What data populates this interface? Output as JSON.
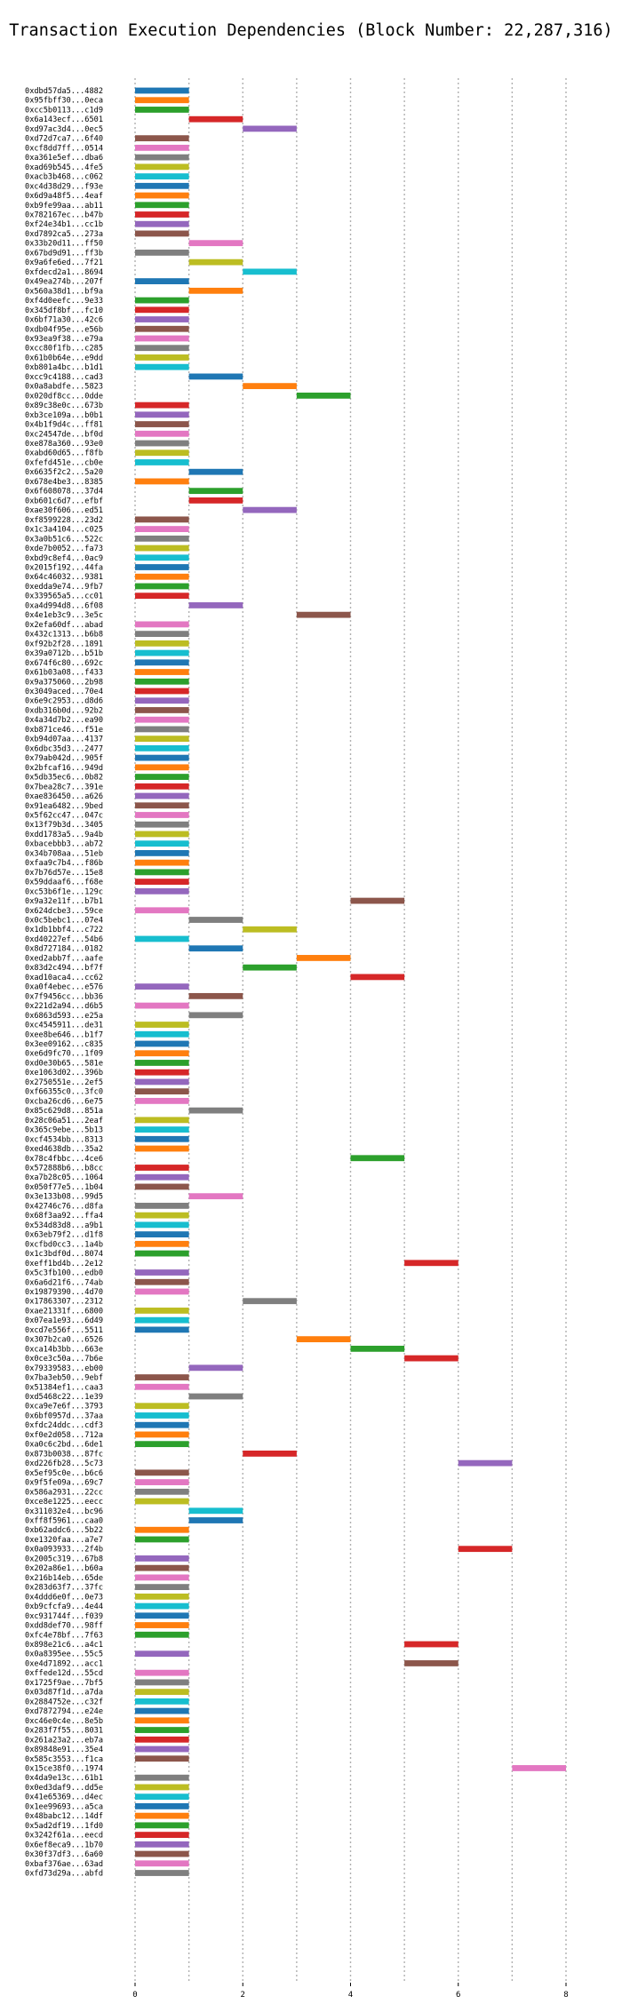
{
  "chart_data": {
    "type": "bar",
    "orientation": "horizontal",
    "title": "Transaction Execution Dependencies (Block Number: 22,287,316)",
    "xlabel": "",
    "ylabel": "",
    "xlim": [
      -0.5,
      8.5
    ],
    "xticks": [
      0,
      2,
      4,
      6,
      8
    ],
    "grid": "x-only dotted",
    "legend": "none",
    "bar_length": 1,
    "palette": [
      "#1f77b4",
      "#ff7f0e",
      "#2ca02c",
      "#d62728",
      "#9467bd",
      "#8c564b",
      "#e377c2",
      "#7f7f7f",
      "#bcbd22",
      "#17becf"
    ],
    "transactions": [
      {
        "label": "0xdbd57da5...4882",
        "start": 0
      },
      {
        "label": "0x95fbff30...0eca",
        "start": 0
      },
      {
        "label": "0xcc5b0113...c1d9",
        "start": 0
      },
      {
        "label": "0x6a143ecf...6501",
        "start": 1
      },
      {
        "label": "0xd97ac3d4...0ec5",
        "start": 2
      },
      {
        "label": "0xd72d7ca7...6f40",
        "start": 0
      },
      {
        "label": "0xcf8dd7ff...0514",
        "start": 0
      },
      {
        "label": "0xa361e5ef...dba6",
        "start": 0
      },
      {
        "label": "0xad69b545...4fe5",
        "start": 0
      },
      {
        "label": "0xacb3b468...c062",
        "start": 0
      },
      {
        "label": "0xc4d38d29...f93e",
        "start": 0
      },
      {
        "label": "0x6d9a48f5...4eaf",
        "start": 0
      },
      {
        "label": "0xb9fe99aa...ab11",
        "start": 0
      },
      {
        "label": "0x782167ec...b47b",
        "start": 0
      },
      {
        "label": "0xf24e34b1...cc1b",
        "start": 0
      },
      {
        "label": "0xd7892ca5...273a",
        "start": 0
      },
      {
        "label": "0x33b20d11...ff50",
        "start": 1
      },
      {
        "label": "0x67bd9d91...ff3b",
        "start": 0
      },
      {
        "label": "0x9a6fe6ed...7f21",
        "start": 1
      },
      {
        "label": "0xfdecd2a1...8694",
        "start": 2
      },
      {
        "label": "0x49ea274b...207f",
        "start": 0
      },
      {
        "label": "0x560a38d1...bf9a",
        "start": 1
      },
      {
        "label": "0xf4d0eefc...9e33",
        "start": 0
      },
      {
        "label": "0x345df8bf...fc10",
        "start": 0
      },
      {
        "label": "0x6bf71a30...42c6",
        "start": 0
      },
      {
        "label": "0xdb04f95e...e56b",
        "start": 0
      },
      {
        "label": "0x93ea9f38...e79a",
        "start": 0
      },
      {
        "label": "0xcc80f1fb...c285",
        "start": 0
      },
      {
        "label": "0x61b0b64e...e9dd",
        "start": 0
      },
      {
        "label": "0xb801a4bc...b1d1",
        "start": 0
      },
      {
        "label": "0xcc9c4188...cad3",
        "start": 1
      },
      {
        "label": "0x0a8abdfe...5823",
        "start": 2
      },
      {
        "label": "0x020df8cc...0dde",
        "start": 3
      },
      {
        "label": "0x89c38e0c...673b",
        "start": 0
      },
      {
        "label": "0xb3ce109a...b0b1",
        "start": 0
      },
      {
        "label": "0x4b1f9d4c...ff81",
        "start": 0
      },
      {
        "label": "0xc24547de...bf0d",
        "start": 0
      },
      {
        "label": "0xe878a360...93e0",
        "start": 0
      },
      {
        "label": "0xabd60d65...f8fb",
        "start": 0
      },
      {
        "label": "0xfefd451e...cb0e",
        "start": 0
      },
      {
        "label": "0x6635f2c2...5a20",
        "start": 1
      },
      {
        "label": "0x678e4be3...8385",
        "start": 0
      },
      {
        "label": "0x6f608078...37d4",
        "start": 1
      },
      {
        "label": "0xb601c6d7...efbf",
        "start": 1
      },
      {
        "label": "0xae30f606...ed51",
        "start": 2
      },
      {
        "label": "0xf8599228...23d2",
        "start": 0
      },
      {
        "label": "0x1c3a4104...c025",
        "start": 0
      },
      {
        "label": "0x3a0b51c6...522c",
        "start": 0
      },
      {
        "label": "0xde7b0052...fa73",
        "start": 0
      },
      {
        "label": "0xbd9c8ef4...0ac9",
        "start": 0
      },
      {
        "label": "0x2015f192...44fa",
        "start": 0
      },
      {
        "label": "0x64c46032...9381",
        "start": 0
      },
      {
        "label": "0xedda9e74...9fb7",
        "start": 0
      },
      {
        "label": "0x339565a5...cc01",
        "start": 0
      },
      {
        "label": "0xa4d994d8...6f08",
        "start": 1
      },
      {
        "label": "0x4e1eb3c9...3e5c",
        "start": 3
      },
      {
        "label": "0x2efa60df...abad",
        "start": 0
      },
      {
        "label": "0x432c1313...b6b8",
        "start": 0
      },
      {
        "label": "0xf92b2f28...1891",
        "start": 0
      },
      {
        "label": "0x39a0712b...b51b",
        "start": 0
      },
      {
        "label": "0x674f6c80...692c",
        "start": 0
      },
      {
        "label": "0x61b03a08...f433",
        "start": 0
      },
      {
        "label": "0x9a375060...2b98",
        "start": 0
      },
      {
        "label": "0x3049aced...70e4",
        "start": 0
      },
      {
        "label": "0x6e9c2953...d8d6",
        "start": 0
      },
      {
        "label": "0xdb316b0d...92b2",
        "start": 0
      },
      {
        "label": "0x4a34d7b2...ea90",
        "start": 0
      },
      {
        "label": "0xb871ce46...f51e",
        "start": 0
      },
      {
        "label": "0xb94d07aa...4137",
        "start": 0
      },
      {
        "label": "0x6dbc35d3...2477",
        "start": 0
      },
      {
        "label": "0x79ab042d...905f",
        "start": 0
      },
      {
        "label": "0x2bfcaf16...949d",
        "start": 0
      },
      {
        "label": "0x5db35ec6...0b82",
        "start": 0
      },
      {
        "label": "0x7bea28c7...391e",
        "start": 0
      },
      {
        "label": "0xae836450...a626",
        "start": 0
      },
      {
        "label": "0x91ea6482...9bed",
        "start": 0
      },
      {
        "label": "0x5f62cc47...047c",
        "start": 0
      },
      {
        "label": "0x13f79b3d...3405",
        "start": 0
      },
      {
        "label": "0xdd1783a5...9a4b",
        "start": 0
      },
      {
        "label": "0xbacebbb3...ab72",
        "start": 0
      },
      {
        "label": "0x34b708aa...51eb",
        "start": 0
      },
      {
        "label": "0xfaa9c7b4...f86b",
        "start": 0
      },
      {
        "label": "0x7b76d57e...15e8",
        "start": 0
      },
      {
        "label": "0x59ddaaf6...f68e",
        "start": 0
      },
      {
        "label": "0xc53b6f1e...129c",
        "start": 0
      },
      {
        "label": "0x9a32e11f...b7b1",
        "start": 4
      },
      {
        "label": "0x624dcbe3...59ce",
        "start": 0
      },
      {
        "label": "0x0c5bebc1...07e4",
        "start": 1
      },
      {
        "label": "0x1db1bbf4...c722",
        "start": 2
      },
      {
        "label": "0xd40227ef...54b6",
        "start": 0
      },
      {
        "label": "0x8d727184...0182",
        "start": 1
      },
      {
        "label": "0xed2abb7f...aafe",
        "start": 3
      },
      {
        "label": "0x83d2c494...bf7f",
        "start": 2
      },
      {
        "label": "0xad10aca4...cc62",
        "start": 4
      },
      {
        "label": "0xa0f4ebec...e576",
        "start": 0
      },
      {
        "label": "0x7f9456cc...bb36",
        "start": 1
      },
      {
        "label": "0x221d2a94...d6b5",
        "start": 0
      },
      {
        "label": "0x6863d593...e25a",
        "start": 1
      },
      {
        "label": "0xc4545911...de31",
        "start": 0
      },
      {
        "label": "0xee8be646...b1f7",
        "start": 0
      },
      {
        "label": "0x3ee09162...c835",
        "start": 0
      },
      {
        "label": "0xe6d9fc70...1f09",
        "start": 0
      },
      {
        "label": "0xd0e30b65...581e",
        "start": 0
      },
      {
        "label": "0xe1063d02...396b",
        "start": 0
      },
      {
        "label": "0x2750551e...2ef5",
        "start": 0
      },
      {
        "label": "0xf66355c0...3fc0",
        "start": 0
      },
      {
        "label": "0xcba26cd6...6e75",
        "start": 0
      },
      {
        "label": "0x85c629d8...851a",
        "start": 1
      },
      {
        "label": "0x28c06a51...2eaf",
        "start": 0
      },
      {
        "label": "0x365c9ebe...5b13",
        "start": 0
      },
      {
        "label": "0xcf4534bb...8313",
        "start": 0
      },
      {
        "label": "0xed4638db...35a2",
        "start": 0
      },
      {
        "label": "0x78c4fbbc...4ce6",
        "start": 4
      },
      {
        "label": "0x572888b6...b8cc",
        "start": 0
      },
      {
        "label": "0xa7b28c05...1064",
        "start": 0
      },
      {
        "label": "0x050f77e5...1b04",
        "start": 0
      },
      {
        "label": "0x3e133b08...99d5",
        "start": 1
      },
      {
        "label": "0x42746c76...d8fa",
        "start": 0
      },
      {
        "label": "0x68f3aa92...ffa4",
        "start": 0
      },
      {
        "label": "0x534d83d8...a9b1",
        "start": 0
      },
      {
        "label": "0x63eb79f2...d1f8",
        "start": 0
      },
      {
        "label": "0xcfbd0cc3...1a4b",
        "start": 0
      },
      {
        "label": "0x1c3bdf0d...8074",
        "start": 0
      },
      {
        "label": "0xeff1bd4b...2e12",
        "start": 5
      },
      {
        "label": "0x5c3fb100...edb0",
        "start": 0
      },
      {
        "label": "0x6a6d21f6...74ab",
        "start": 0
      },
      {
        "label": "0x19879390...4d70",
        "start": 0
      },
      {
        "label": "0x17863307...2312",
        "start": 2
      },
      {
        "label": "0xae21331f...6800",
        "start": 0
      },
      {
        "label": "0x07ea1e93...6d49",
        "start": 0
      },
      {
        "label": "0xcd7e556f...5511",
        "start": 0
      },
      {
        "label": "0x307b2ca0...6526",
        "start": 3
      },
      {
        "label": "0xca14b3bb...663e",
        "start": 4
      },
      {
        "label": "0x0ce3c50a...7b6e",
        "start": 5
      },
      {
        "label": "0x79339583...eb00",
        "start": 1
      },
      {
        "label": "0x7ba3eb50...9ebf",
        "start": 0
      },
      {
        "label": "0x51384ef1...caa3",
        "start": 0
      },
      {
        "label": "0xd5468c22...1e39",
        "start": 1
      },
      {
        "label": "0xca9e7e6f...3793",
        "start": 0
      },
      {
        "label": "0x6bf0957d...37aa",
        "start": 0
      },
      {
        "label": "0xfdc24ddc...cdf3",
        "start": 0
      },
      {
        "label": "0xf0e2d058...712a",
        "start": 0
      },
      {
        "label": "0xa0c6c2bd...6de1",
        "start": 0
      },
      {
        "label": "0x873b0038...87fc",
        "start": 2
      },
      {
        "label": "0xd226fb28...5c73",
        "start": 6
      },
      {
        "label": "0x5ef95c0e...b6c6",
        "start": 0
      },
      {
        "label": "0x9f5fe09a...69c7",
        "start": 0
      },
      {
        "label": "0x586a2931...22cc",
        "start": 0
      },
      {
        "label": "0xce8e1225...eecc",
        "start": 0
      },
      {
        "label": "0x311032e4...bc96",
        "start": 1
      },
      {
        "label": "0xff8f5961...caa0",
        "start": 1
      },
      {
        "label": "0xb62addc6...5b22",
        "start": 0
      },
      {
        "label": "0xe1320faa...a7e7",
        "start": 0
      },
      {
        "label": "0x0a093933...2f4b",
        "start": 6
      },
      {
        "label": "0x2005c319...67b8",
        "start": 0
      },
      {
        "label": "0x202a86e1...b60a",
        "start": 0
      },
      {
        "label": "0x216b14eb...65de",
        "start": 0
      },
      {
        "label": "0x283d63f7...37fc",
        "start": 0
      },
      {
        "label": "0x4ddd6e0f...0e73",
        "start": 0
      },
      {
        "label": "0xb9cfcfa9...4e44",
        "start": 0
      },
      {
        "label": "0xc931744f...f039",
        "start": 0
      },
      {
        "label": "0xdd8def70...98ff",
        "start": 0
      },
      {
        "label": "0xfc4e78bf...7f63",
        "start": 0
      },
      {
        "label": "0x898e21c6...a4c1",
        "start": 5
      },
      {
        "label": "0x0a8395ee...55c5",
        "start": 0
      },
      {
        "label": "0xe4d71892...acc1",
        "start": 5
      },
      {
        "label": "0xffede12d...55cd",
        "start": 0
      },
      {
        "label": "0x1725f9ae...7bf5",
        "start": 0
      },
      {
        "label": "0x03d87f1d...a7da",
        "start": 0
      },
      {
        "label": "0x2884752e...c32f",
        "start": 0
      },
      {
        "label": "0xd7872794...e24e",
        "start": 0
      },
      {
        "label": "0xc46e0c4e...8e5b",
        "start": 0
      },
      {
        "label": "0x283f7f55...8031",
        "start": 0
      },
      {
        "label": "0x261a23a2...eb7a",
        "start": 0
      },
      {
        "label": "0x89848e91...35e4",
        "start": 0
      },
      {
        "label": "0x585c3553...f1ca",
        "start": 0
      },
      {
        "label": "0x15ce38f0...1974",
        "start": 7
      },
      {
        "label": "0x4da9e13c...61b1",
        "start": 0
      },
      {
        "label": "0x0ed3daf9...dd5e",
        "start": 0
      },
      {
        "label": "0x41e65369...d4ec",
        "start": 0
      },
      {
        "label": "0x1ee99693...a5ca",
        "start": 0
      },
      {
        "label": "0x48babc12...14df",
        "start": 0
      },
      {
        "label": "0x5ad2df19...1fd0",
        "start": 0
      },
      {
        "label": "0x3242f61a...eecd",
        "start": 0
      },
      {
        "label": "0x6ef8eca9...1b70",
        "start": 0
      },
      {
        "label": "0x30f37df3...6a60",
        "start": 0
      },
      {
        "label": "0xbaf376ae...63ad",
        "start": 0
      },
      {
        "label": "0xfd73d29a...abfd",
        "start": 0
      }
    ]
  }
}
